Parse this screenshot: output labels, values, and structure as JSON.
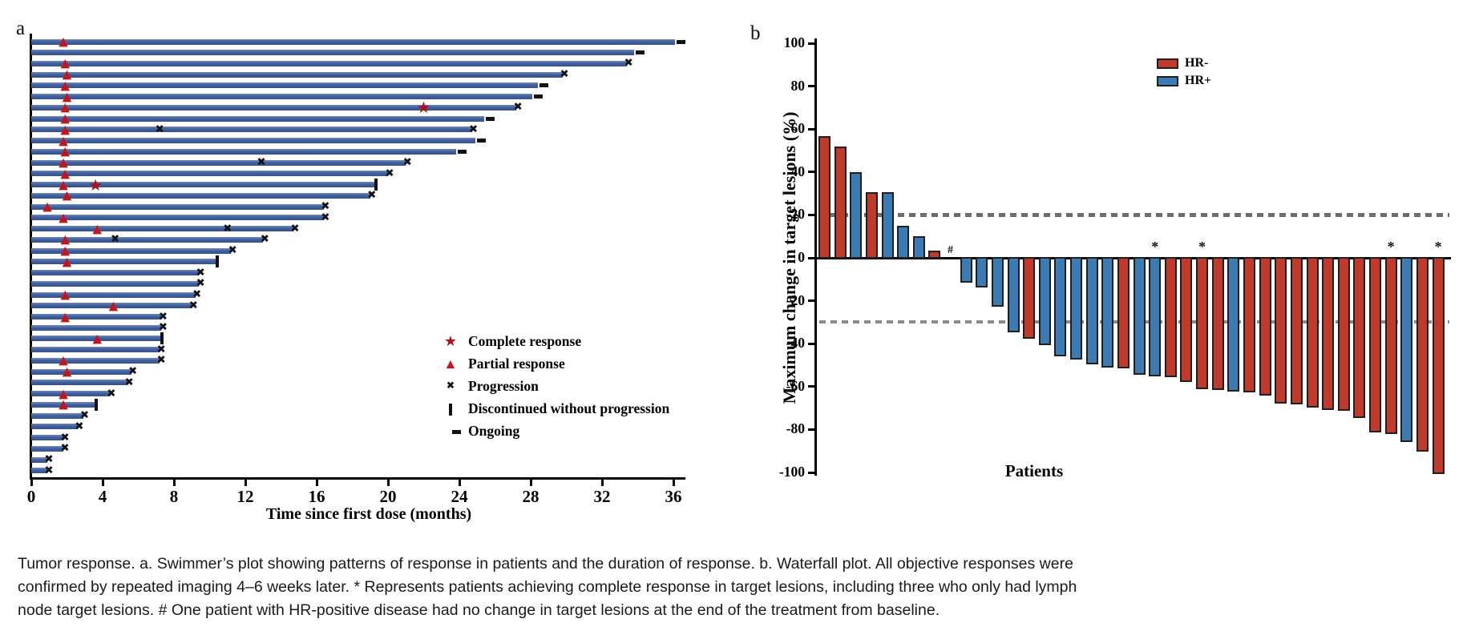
{
  "figure": {
    "panel_a": {
      "label": "a"
    },
    "panel_b": {
      "label": "b"
    },
    "caption_lines": [
      "Tumor response. a. Swimmer’s plot showing patterns of response in patients and the duration of response. b. Waterfall plot. All objective responses were",
      "confirmed by repeated imaging 4–6 weeks later. * Represents patients achieving complete response in target lesions, including three who only had lymph",
      "node target lesions. # One patient with HR-positive disease had no change in target lesions at the end of the treatment from baseline."
    ]
  },
  "chart_data": [
    {
      "type": "swimmer",
      "xlabel": "Time since first dose (months)",
      "x_ticks": [
        0,
        4,
        8,
        12,
        16,
        20,
        24,
        28,
        32,
        36
      ],
      "xlim": [
        0,
        36.5
      ],
      "bar_color": "#3c5c9c",
      "marker_colors": {
        "partial_response": "#c3161c",
        "complete_response": "#ae0f1e",
        "progression": "#121212",
        "discontinued": "#121212",
        "ongoing": "#121212"
      },
      "legend": [
        {
          "symbol": "star",
          "label": "Complete response"
        },
        {
          "symbol": "triangle",
          "label": "Partial response"
        },
        {
          "symbol": "x",
          "label": "Progression"
        },
        {
          "symbol": "vbar",
          "label": "Discontinued without progression"
        },
        {
          "symbol": "dash",
          "label": "Ongoing"
        }
      ],
      "rows": [
        {
          "months": 36.1,
          "end": "ongoing",
          "markers": [
            {
              "type": "partial_response",
              "month": 1.8
            }
          ]
        },
        {
          "months": 33.8,
          "end": "ongoing",
          "markers": []
        },
        {
          "months": 33.4,
          "end": "progression",
          "markers": [
            {
              "type": "partial_response",
              "month": 1.9
            }
          ]
        },
        {
          "months": 29.8,
          "end": "progression",
          "markers": [
            {
              "type": "partial_response",
              "month": 2.0
            }
          ]
        },
        {
          "months": 28.4,
          "end": "ongoing",
          "markers": [
            {
              "type": "partial_response",
              "month": 1.9
            }
          ]
        },
        {
          "months": 28.1,
          "end": "ongoing",
          "markers": [
            {
              "type": "partial_response",
              "month": 2.0
            }
          ]
        },
        {
          "months": 27.2,
          "end": "progression",
          "markers": [
            {
              "type": "partial_response",
              "month": 1.9
            },
            {
              "type": "complete_response",
              "month": 22.0
            }
          ]
        },
        {
          "months": 25.4,
          "end": "ongoing",
          "markers": [
            {
              "type": "partial_response",
              "month": 1.9
            }
          ]
        },
        {
          "months": 24.7,
          "end": "progression",
          "markers": [
            {
              "type": "partial_response",
              "month": 1.9
            },
            {
              "type": "progression",
              "month": 7.2
            }
          ]
        },
        {
          "months": 24.9,
          "end": "ongoing",
          "markers": [
            {
              "type": "partial_response",
              "month": 1.8
            }
          ]
        },
        {
          "months": 23.8,
          "end": "ongoing",
          "markers": [
            {
              "type": "partial_response",
              "month": 1.9
            }
          ]
        },
        {
          "months": 21.0,
          "end": "progression",
          "markers": [
            {
              "type": "partial_response",
              "month": 1.8
            },
            {
              "type": "progression",
              "month": 12.9
            }
          ]
        },
        {
          "months": 20.0,
          "end": "progression",
          "markers": [
            {
              "type": "partial_response",
              "month": 1.9
            }
          ]
        },
        {
          "months": 19.3,
          "end": "discontinued",
          "markers": [
            {
              "type": "partial_response",
              "month": 1.8
            },
            {
              "type": "complete_response",
              "month": 3.6
            }
          ]
        },
        {
          "months": 19.0,
          "end": "progression",
          "markers": [
            {
              "type": "partial_response",
              "month": 2.0
            }
          ]
        },
        {
          "months": 16.4,
          "end": "progression",
          "markers": [
            {
              "type": "partial_response",
              "month": 0.9
            }
          ]
        },
        {
          "months": 16.4,
          "end": "progression",
          "markers": [
            {
              "type": "partial_response",
              "month": 1.8
            }
          ]
        },
        {
          "months": 14.7,
          "end": "progression",
          "markers": [
            {
              "type": "partial_response",
              "month": 3.7
            },
            {
              "type": "progression",
              "month": 11.0
            }
          ]
        },
        {
          "months": 13.0,
          "end": "progression",
          "markers": [
            {
              "type": "partial_response",
              "month": 1.9
            },
            {
              "type": "progression",
              "month": 4.7
            }
          ]
        },
        {
          "months": 11.2,
          "end": "progression",
          "markers": [
            {
              "type": "partial_response",
              "month": 1.9
            }
          ]
        },
        {
          "months": 10.4,
          "end": "discontinued",
          "markers": [
            {
              "type": "partial_response",
              "month": 2.0
            }
          ]
        },
        {
          "months": 9.4,
          "end": "progression",
          "markers": []
        },
        {
          "months": 9.4,
          "end": "progression",
          "markers": []
        },
        {
          "months": 9.2,
          "end": "progression",
          "markers": [
            {
              "type": "partial_response",
              "month": 1.9
            }
          ]
        },
        {
          "months": 9.0,
          "end": "progression",
          "markers": [
            {
              "type": "partial_response",
              "month": 4.6
            }
          ]
        },
        {
          "months": 7.3,
          "end": "progression",
          "markers": [
            {
              "type": "partial_response",
              "month": 1.9
            }
          ]
        },
        {
          "months": 7.3,
          "end": "progression",
          "markers": []
        },
        {
          "months": 7.3,
          "end": "discontinued",
          "markers": [
            {
              "type": "partial_response",
              "month": 3.7
            }
          ]
        },
        {
          "months": 7.2,
          "end": "progression",
          "markers": []
        },
        {
          "months": 7.2,
          "end": "progression",
          "markers": [
            {
              "type": "partial_response",
              "month": 1.8
            }
          ]
        },
        {
          "months": 5.6,
          "end": "progression",
          "markers": [
            {
              "type": "partial_response",
              "month": 2.0
            }
          ]
        },
        {
          "months": 5.4,
          "end": "progression",
          "markers": []
        },
        {
          "months": 4.4,
          "end": "progression",
          "markers": [
            {
              "type": "partial_response",
              "month": 1.8
            }
          ]
        },
        {
          "months": 3.6,
          "end": "discontinued",
          "markers": [
            {
              "type": "partial_response",
              "month": 1.8
            }
          ]
        },
        {
          "months": 2.9,
          "end": "progression",
          "markers": []
        },
        {
          "months": 2.6,
          "end": "progression",
          "markers": []
        },
        {
          "months": 1.8,
          "end": "progression",
          "markers": []
        },
        {
          "months": 1.8,
          "end": "progression",
          "markers": []
        },
        {
          "months": 0.9,
          "end": "progression",
          "markers": []
        },
        {
          "months": 0.9,
          "end": "progression",
          "markers": []
        }
      ]
    },
    {
      "type": "bar",
      "subtype": "waterfall",
      "ylabel": "Maximum change in target lesions (%)",
      "xlabel": "Patients",
      "y_ticks": [
        100,
        80,
        60,
        40,
        20,
        0,
        -20,
        -40,
        -60,
        -80,
        -100
      ],
      "ylim": [
        -100,
        100
      ],
      "reference_lines": [
        {
          "y": 20,
          "style": "dashed"
        },
        {
          "y": -30,
          "style": "dashed"
        }
      ],
      "legend": [
        {
          "label": "HR-",
          "color": "#c03a2b"
        },
        {
          "label": "HR+",
          "color": "#3d7bb5"
        }
      ],
      "group_colors": {
        "HR-": "#c03a2b",
        "HR+": "#3d7bb5"
      },
      "patients": [
        {
          "value": 56,
          "group": "HR-"
        },
        {
          "value": 51,
          "group": "HR-"
        },
        {
          "value": 39,
          "group": "HR+"
        },
        {
          "value": 30,
          "group": "HR-"
        },
        {
          "value": 30,
          "group": "HR+"
        },
        {
          "value": 14,
          "group": "HR+"
        },
        {
          "value": 9.5,
          "group": "HR+"
        },
        {
          "value": 2.5,
          "group": "HR-"
        },
        {
          "value": 0,
          "group": "HR+",
          "annotation": "#"
        },
        {
          "value": -11,
          "group": "HR+"
        },
        {
          "value": -13,
          "group": "HR+"
        },
        {
          "value": -22,
          "group": "HR+"
        },
        {
          "value": -34,
          "group": "HR+"
        },
        {
          "value": -37,
          "group": "HR-"
        },
        {
          "value": -40,
          "group": "HR+"
        },
        {
          "value": -45,
          "group": "HR+"
        },
        {
          "value": -46.5,
          "group": "HR+"
        },
        {
          "value": -49,
          "group": "HR+"
        },
        {
          "value": -50.4,
          "group": "HR+"
        },
        {
          "value": -50.7,
          "group": "HR-"
        },
        {
          "value": -53.7,
          "group": "HR+"
        },
        {
          "value": -54.5,
          "group": "HR+",
          "annotation": "*"
        },
        {
          "value": -55,
          "group": "HR-"
        },
        {
          "value": -57,
          "group": "HR-"
        },
        {
          "value": -60.5,
          "group": "HR-",
          "annotation": "*"
        },
        {
          "value": -61,
          "group": "HR-"
        },
        {
          "value": -61.5,
          "group": "HR+"
        },
        {
          "value": -62,
          "group": "HR-"
        },
        {
          "value": -63.5,
          "group": "HR-"
        },
        {
          "value": -67,
          "group": "HR-"
        },
        {
          "value": -67.5,
          "group": "HR-"
        },
        {
          "value": -69,
          "group": "HR-"
        },
        {
          "value": -70,
          "group": "HR-"
        },
        {
          "value": -70.5,
          "group": "HR-"
        },
        {
          "value": -74,
          "group": "HR-"
        },
        {
          "value": -80.5,
          "group": "HR-"
        },
        {
          "value": -81.5,
          "group": "HR-",
          "annotation": "*"
        },
        {
          "value": -85,
          "group": "HR+"
        },
        {
          "value": -89.5,
          "group": "HR-"
        },
        {
          "value": -100,
          "group": "HR-",
          "annotation": "*"
        }
      ]
    }
  ]
}
